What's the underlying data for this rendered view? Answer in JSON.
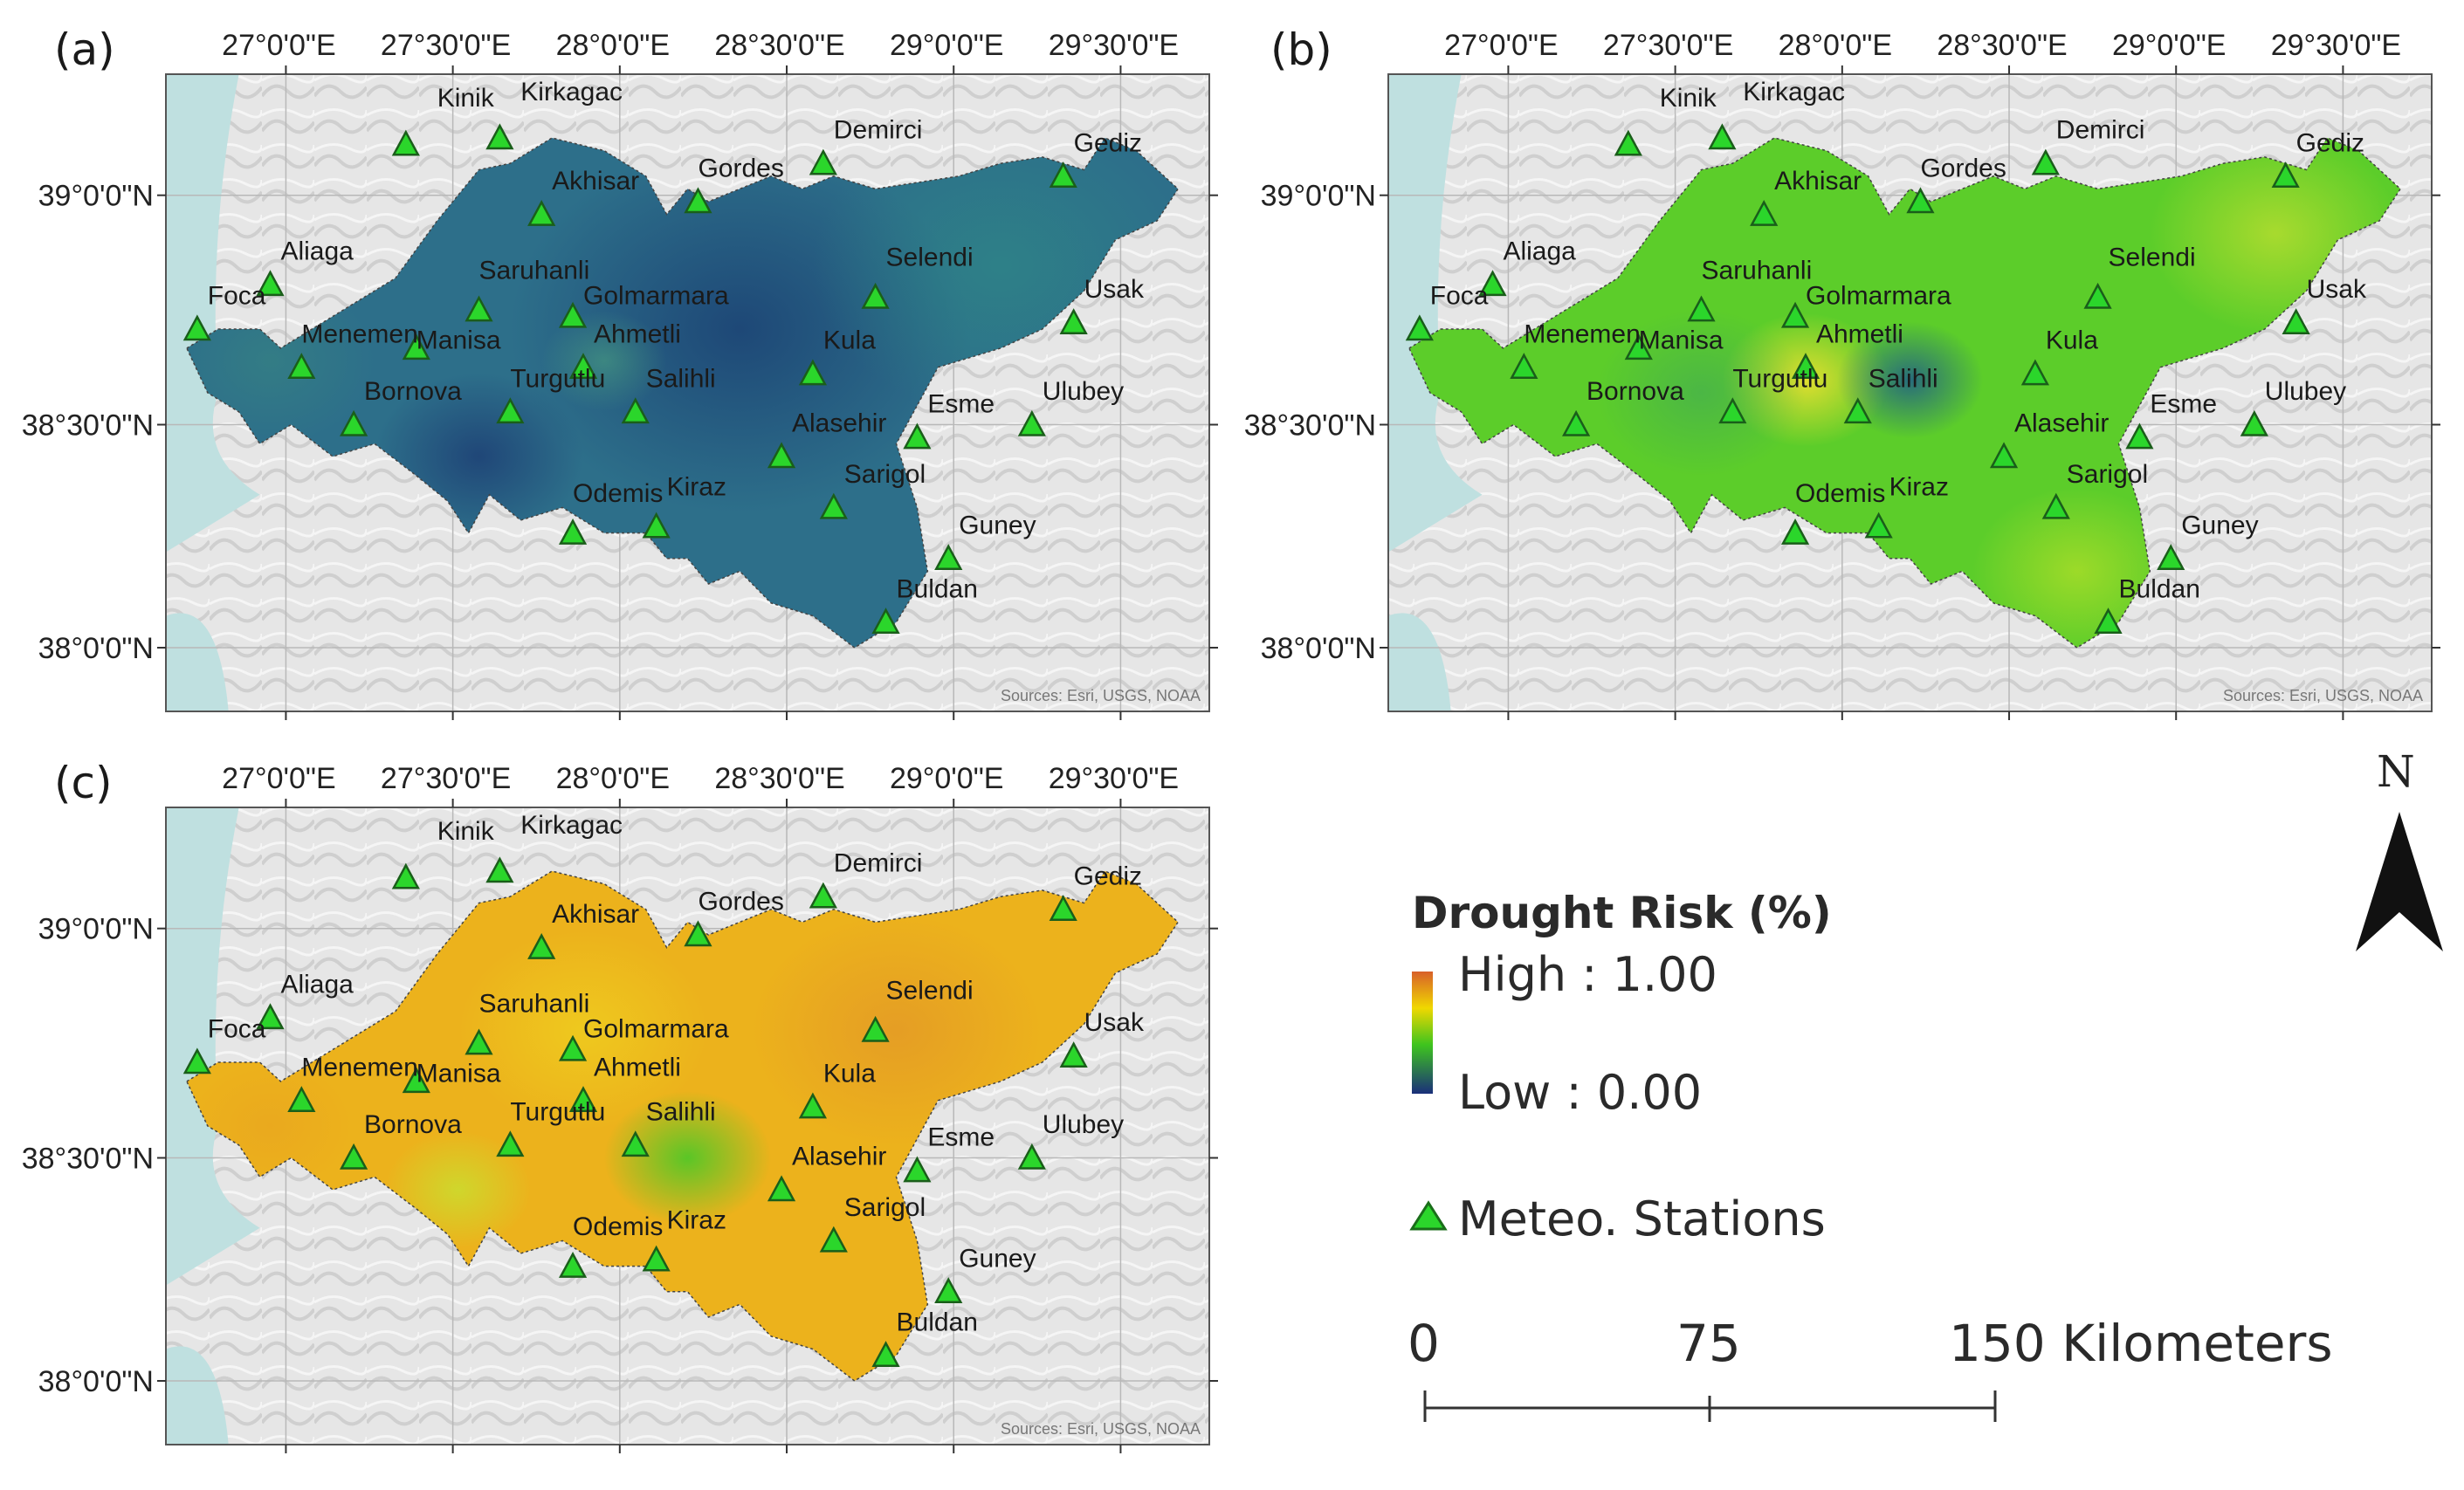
{
  "panels": [
    {
      "label": "(a)",
      "source": "Sources: Esri, USGS, NOAA"
    },
    {
      "label": "(b)",
      "source": "Sources: Esri, USGS, NOAA"
    },
    {
      "label": "(c)",
      "source": "Sources: Esri, USGS, NOAA"
    }
  ],
  "lon_labels": [
    "27°0'0\"E",
    "27°30'0\"E",
    "28°0'0\"E",
    "28°30'0\"E",
    "29°0'0\"E",
    "29°30'0\"E"
  ],
  "lat_labels": [
    "39°0'0\"N",
    "38°30'0\"N",
    "38°0'0\"N"
  ],
  "stations": [
    "Kinik",
    "Kirkagac",
    "Demirci",
    "Gediz",
    "Gordes",
    "Akhisar",
    "Aliaga",
    "Selendi",
    "Saruhanli",
    "Golmarmara",
    "Foca",
    "Manisa",
    "Usak",
    "Menemen",
    "Ahmetli",
    "Kula",
    "Turgutlu",
    "Bornova",
    "Salihli",
    "Esme",
    "Ulubey",
    "Alasehir",
    "Sarigol",
    "Odemis",
    "Kiraz",
    "Guney",
    "Buldan"
  ],
  "legend": {
    "title": "Drought Risk (%)",
    "high": "High : 1.00",
    "low": "Low : 0.00",
    "stations": "Meteo. Stations",
    "colors": {
      "high": "#d8602a",
      "mid_high": "#f0d800",
      "mid": "#3ec41e",
      "low": "#1a2f7a"
    }
  },
  "scale": {
    "zero": "0",
    "mid": "75",
    "end": "150 Kilometers"
  },
  "north": "N"
}
